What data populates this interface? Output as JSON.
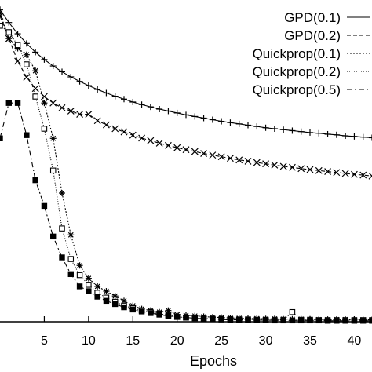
{
  "chart_data": {
    "type": "line",
    "xlabel": "Epochs",
    "ylabel": "",
    "title": "",
    "xlim": [
      0,
      42
    ],
    "ylim": [
      0,
      1
    ],
    "xticks": [
      5,
      10,
      15,
      20,
      25,
      30,
      35,
      40
    ],
    "grid": false,
    "legend_position": "top-right",
    "series": [
      {
        "name": "GPD(0.1)",
        "style": "solid",
        "marker": "plus",
        "x": [
          0,
          1,
          2,
          3,
          4,
          5,
          6,
          7,
          8,
          9,
          10,
          11,
          12,
          13,
          14,
          15,
          16,
          17,
          18,
          19,
          20,
          21,
          22,
          23,
          24,
          25,
          26,
          27,
          28,
          29,
          30,
          31,
          32,
          33,
          34,
          35,
          36,
          37,
          38,
          39,
          40,
          41,
          42
        ],
        "y": [
          0.97,
          0.93,
          0.895,
          0.865,
          0.838,
          0.815,
          0.795,
          0.777,
          0.761,
          0.747,
          0.734,
          0.722,
          0.711,
          0.701,
          0.692,
          0.683,
          0.675,
          0.668,
          0.661,
          0.655,
          0.649,
          0.643,
          0.638,
          0.633,
          0.628,
          0.623,
          0.619,
          0.615,
          0.611,
          0.607,
          0.603,
          0.6,
          0.597,
          0.594,
          0.591,
          0.588,
          0.586,
          0.583,
          0.581,
          0.578,
          0.576,
          0.574,
          0.572
        ]
      },
      {
        "name": "GPD(0.2)",
        "style": "dashed",
        "marker": "x",
        "x": [
          0,
          1,
          2,
          3,
          4,
          5,
          6,
          7,
          8,
          9,
          10,
          11,
          12,
          13,
          14,
          15,
          16,
          17,
          18,
          19,
          20,
          21,
          22,
          23,
          24,
          25,
          26,
          27,
          28,
          29,
          30,
          31,
          32,
          33,
          34,
          35,
          36,
          37,
          38,
          39,
          40,
          41,
          42
        ],
        "y": [
          0.95,
          0.88,
          0.81,
          0.76,
          0.725,
          0.7,
          0.68,
          0.665,
          0.655,
          0.645,
          0.645,
          0.625,
          0.612,
          0.6,
          0.59,
          0.58,
          0.571,
          0.563,
          0.555,
          0.548,
          0.541,
          0.535,
          0.529,
          0.523,
          0.518,
          0.513,
          0.508,
          0.503,
          0.499,
          0.495,
          0.491,
          0.487,
          0.483,
          0.48,
          0.476,
          0.473,
          0.47,
          0.467,
          0.464,
          0.461,
          0.458,
          0.456,
          0.453
        ]
      },
      {
        "name": "Quickprop(0.1)",
        "style": "dotted",
        "marker": "asterisk",
        "x": [
          0,
          1,
          2,
          3,
          4,
          5,
          6,
          7,
          8,
          9,
          10,
          11,
          12,
          13,
          14,
          15,
          16,
          17,
          18,
          19,
          20,
          21,
          22,
          23,
          24,
          25,
          26,
          27,
          28,
          29,
          30,
          31,
          32,
          33,
          34,
          35,
          36,
          37,
          38,
          39,
          40,
          41,
          42
        ],
        "y": [
          0.96,
          0.88,
          0.85,
          0.83,
          0.78,
          0.68,
          0.57,
          0.4,
          0.27,
          0.175,
          0.135,
          0.11,
          0.095,
          0.08,
          0.065,
          0.05,
          0.04,
          0.035,
          0.03,
          0.035,
          0.022,
          0.02,
          0.018,
          0.016,
          0.014,
          0.013,
          0.012,
          0.011,
          0.01,
          0.01,
          0.009,
          0.009,
          0.008,
          0.008,
          0.008,
          0.008,
          0.007,
          0.007,
          0.007,
          0.007,
          0.006,
          0.006,
          0.006
        ]
      },
      {
        "name": "Quickprop(0.2)",
        "style": "fine-dotted",
        "marker": "open-square",
        "x": [
          0,
          1,
          2,
          3,
          4,
          5,
          6,
          7,
          8,
          9,
          10,
          11,
          12,
          13,
          14,
          15,
          16,
          17,
          18,
          19,
          20,
          21,
          22,
          23,
          24,
          25,
          26,
          27,
          28,
          29,
          30,
          31,
          32,
          33,
          34,
          35,
          36,
          37,
          38,
          39,
          40,
          41,
          42
        ],
        "y": [
          0.92,
          0.9,
          0.86,
          0.8,
          0.7,
          0.6,
          0.47,
          0.29,
          0.195,
          0.145,
          0.115,
          0.09,
          0.075,
          0.062,
          0.05,
          0.042,
          0.035,
          0.03,
          0.025,
          0.02,
          0.015,
          0.013,
          0.011,
          0.01,
          0.009,
          0.008,
          0.008,
          0.007,
          0.007,
          0.006,
          0.006,
          0.006,
          0.006,
          0.03,
          0.006,
          0.006,
          0.005,
          0.005,
          0.005,
          0.005,
          0.005,
          0.005,
          0.005
        ]
      },
      {
        "name": "Quickprop(0.5)",
        "style": "dashdot",
        "marker": "filled-square",
        "x": [
          0,
          1,
          2,
          3,
          4,
          5,
          6,
          7,
          8,
          9,
          10,
          11,
          12,
          13,
          14,
          15,
          16,
          17,
          18,
          19,
          20,
          21,
          22,
          23,
          24,
          25,
          26,
          27,
          28,
          29,
          30,
          31,
          32,
          33,
          34,
          35,
          36,
          37,
          38,
          39,
          40,
          41,
          42
        ],
        "y": [
          0.57,
          0.68,
          0.68,
          0.58,
          0.44,
          0.36,
          0.265,
          0.2,
          0.148,
          0.11,
          0.095,
          0.078,
          0.065,
          0.055,
          0.045,
          0.038,
          0.032,
          0.027,
          0.022,
          0.018,
          0.015,
          0.013,
          0.011,
          0.009,
          0.008,
          0.007,
          0.006,
          0.006,
          0.005,
          0.005,
          0.005,
          0.004,
          0.004,
          0.004,
          0.004,
          0.004,
          0.004,
          0.003,
          0.003,
          0.003,
          0.003,
          0.003,
          0.003
        ]
      }
    ]
  }
}
